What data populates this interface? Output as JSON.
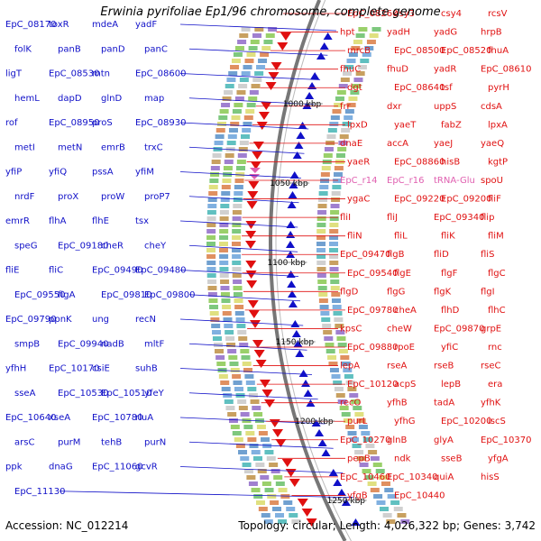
{
  "title": "Erwinia pyrifoliae Ep1/96 chromosome, complete genome",
  "footer": {
    "accession": "Accession: NC_012214",
    "topology": "Topology: circular; Length: 4,026,322 bp; Genes: 3,742"
  },
  "kbp_labels": [
    "1000 kbp",
    "1050 kbp",
    "1100 kbp",
    "1150 kbp",
    "1200 kbp",
    "1250 kbp"
  ],
  "colors": {
    "reverse_strand": "#1010c8",
    "forward_strand": "#e01010",
    "rna": "#e060b0",
    "backbone": "#777777"
  },
  "left_genes": [
    "EpC_08170",
    "toxR",
    "mdeA",
    "yadF",
    "folK",
    "panB",
    "panD",
    "panC",
    "ligT",
    "EpC_08530",
    "mtn",
    "EpC_08600",
    "hemL",
    "dapD",
    "glnD",
    "map",
    "rof",
    "EpC_08950",
    "proS",
    "EpC_08930",
    "metI",
    "metN",
    "emrB",
    "trxC",
    "yfiP",
    "yfiQ",
    "pssA",
    "yfiM",
    "nrdF",
    "proX",
    "proW",
    "proP7",
    "emrR",
    "flhA",
    "flhE",
    "tsx",
    "speG",
    "EpC_09180",
    "cheR",
    "cheY",
    "fliE",
    "fliC",
    "EpC_09490",
    "EpC_09480",
    "EpC_09550",
    "figA",
    "EpC_09810",
    "EpC_09800",
    "EpC_09790",
    "ppnK",
    "ung",
    "recN",
    "smpB",
    "EpC_09940",
    "nadB",
    "mltF",
    "yfhH",
    "EpC_10170",
    "csiE",
    "suhB",
    "sseA",
    "EpC_10530",
    "EpC_10510",
    "yfeY",
    "EpC_10640",
    "xseA",
    "EpC_10780",
    "rluA",
    "arsC",
    "purM",
    "tehB",
    "purN",
    "ppk",
    "dnaG",
    "EpC_11060",
    "gcvR",
    "EpC_11130"
  ],
  "right_genes": [
    "EpC_08260",
    "csy3",
    "csy4",
    "rcsV",
    "hpt",
    "yadH",
    "yadG",
    "hrpB",
    "mrcB",
    "EpC_08500",
    "EpC_08520",
    "fhuA",
    "fhuC",
    "fhuD",
    "yadR",
    "EpC_08610",
    "dgt",
    "EpC_08640",
    "tsf",
    "pyrH",
    "frr",
    "dxr",
    "uppS",
    "cdsA",
    "lpxD",
    "yaeT",
    "fabZ",
    "lpxA",
    "dnaE",
    "accA",
    "yaeJ",
    "yaeQ",
    "yaeR",
    "EpC_08860",
    "hisB",
    "kgtP",
    "EpC_r14",
    "EpC_r16",
    "tRNA-Glu",
    "spoU",
    "ygaC",
    "EpC_09220",
    "EpC_09200",
    "fliF",
    "fliI",
    "fliJ",
    "EpC_09340",
    "flip",
    "fliN",
    "fliL",
    "fliK",
    "fliM",
    "EpC_09470",
    "flgB",
    "fliD",
    "fliS",
    "EpC_09540",
    "flgE",
    "flgF",
    "flgC",
    "flgD",
    "flgG",
    "flgK",
    "flgI",
    "EpC_09780",
    "cheA",
    "flhD",
    "flhC",
    "kpsC",
    "cheW",
    "EpC_09870",
    "grpE",
    "EpC_09880",
    "rpoE",
    "yfiC",
    "rnc",
    "lepA",
    "rseA",
    "rseB",
    "rseC",
    "EpC_10120",
    "acpS",
    "lepB",
    "era",
    "recO",
    "yfhB",
    "tadA",
    "yfhK",
    "purL",
    "yfhG",
    "EpC_10200",
    "iscS",
    "EpC_10270",
    "glnB",
    "glyA",
    "EpC_10370",
    "pepB",
    "ndk",
    "sseB",
    "yfgA",
    "EpC_10460",
    "EpC_10340",
    "quiA",
    "hisS",
    "yfgB",
    "EpC_10440"
  ]
}
